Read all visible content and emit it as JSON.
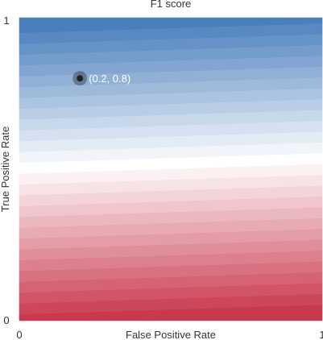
{
  "chart_data": {
    "type": "heatmap",
    "title": "F1 score",
    "xlabel": "False Positive Rate",
    "ylabel": "True Positive Rate",
    "xlim": [
      0,
      1
    ],
    "ylim": [
      0,
      1
    ],
    "x_ticks": [
      "0",
      "1"
    ],
    "y_ticks": [
      "0",
      "1"
    ],
    "grid": false,
    "colors": {
      "high": "#4a7fbd",
      "mid": "#ffffff",
      "low": "#c9394e"
    },
    "point": {
      "x": 0.2,
      "y": 0.8,
      "label": "(0.2, 0.8)"
    }
  }
}
